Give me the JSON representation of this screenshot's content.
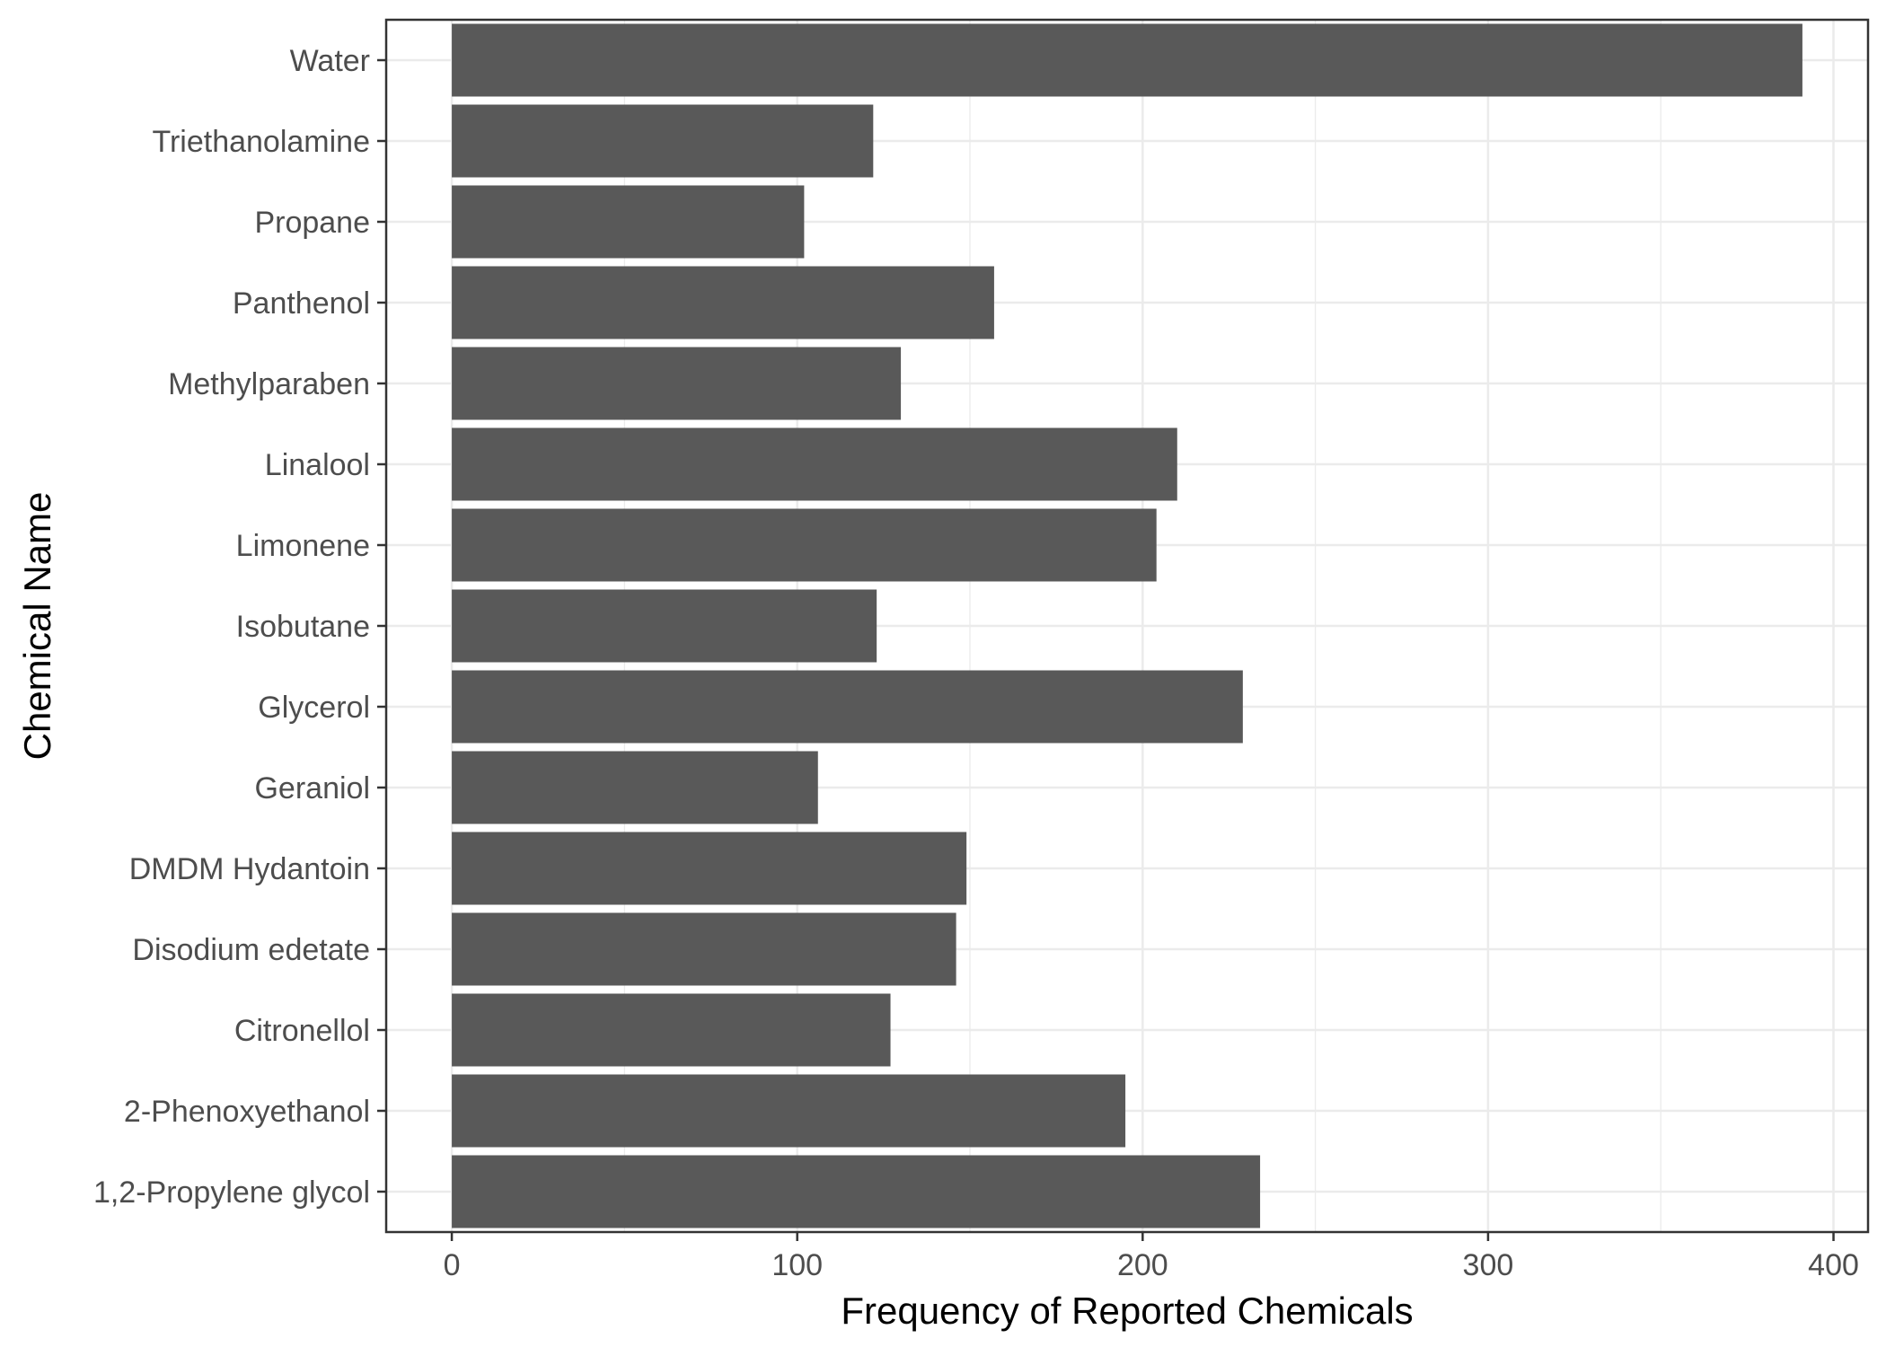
{
  "chart_data": {
    "type": "bar",
    "orientation": "horizontal",
    "title": "",
    "xlabel": "Frequency of Reported Chemicals",
    "ylabel": "Chemical Name",
    "categories": [
      "Water",
      "Triethanolamine",
      "Propane",
      "Panthenol",
      "Methylparaben",
      "Linalool",
      "Limonene",
      "Isobutane",
      "Glycerol",
      "Geraniol",
      "DMDM Hydantoin",
      "Disodium edetate",
      "Citronellol",
      "2-Phenoxyethanol",
      "1,2-Propylene glycol"
    ],
    "values": [
      391,
      122,
      102,
      157,
      130,
      210,
      204,
      123,
      229,
      106,
      149,
      146,
      127,
      195,
      234
    ],
    "xlim": [
      -19,
      410
    ],
    "xticks": [
      "0",
      "100",
      "200",
      "300",
      "400"
    ],
    "xtick_values": [
      0,
      100,
      200,
      300,
      400
    ],
    "grid": true,
    "bar_color": "#595959",
    "grid_color": "#ebebeb",
    "legend": "none"
  }
}
